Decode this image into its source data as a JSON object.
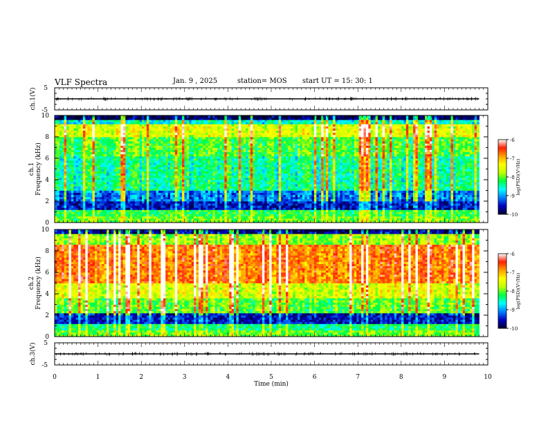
{
  "header": {
    "title": "VLF Spectra",
    "date": "Jan. 9 , 2025",
    "station": "station= MOS",
    "start_ut": "start UT = 15: 30: 1"
  },
  "chart_data": [
    {
      "type": "line",
      "panel": "ch1-waveform",
      "ylabel": "ch.1(V)",
      "ylim": [
        -5,
        5
      ],
      "yticks": [
        "5",
        "-5"
      ],
      "xlim": [
        0,
        10
      ],
      "series": [
        {
          "x": [
            0,
            9.8
          ],
          "y": [
            0,
            0
          ]
        }
      ]
    },
    {
      "type": "heatmap",
      "panel": "ch1-spectrogram",
      "ylabel_line1": "ch.1",
      "ylabel_line2": "Frequency (kHz)",
      "ylim": [
        0,
        10
      ],
      "yticks": [
        "0",
        "2",
        "4",
        "6",
        "8",
        "10"
      ],
      "xlim": [
        0,
        10
      ],
      "data_xmax": 9.8,
      "colorbar": {
        "label": "log(PSD)(V²/Hz)",
        "range": [
          -10,
          -6
        ],
        "ticks": [
          "-6",
          "-7",
          "-8",
          "-9",
          "-10"
        ]
      }
    },
    {
      "type": "heatmap",
      "panel": "ch2-spectrogram",
      "ylabel_line1": "ch.2",
      "ylabel_line2": "Frequency (kHz)",
      "ylim": [
        0,
        10
      ],
      "yticks": [
        "0",
        "2",
        "4",
        "6",
        "8",
        "10"
      ],
      "xlim": [
        0,
        10
      ],
      "data_xmax": 9.8,
      "colorbar": {
        "label": "log(PSD)(V²/Hz)",
        "range": [
          -10,
          -6
        ],
        "ticks": [
          "-6",
          "-7",
          "-8",
          "-9",
          "-10"
        ]
      }
    },
    {
      "type": "line",
      "panel": "ch3-waveform",
      "ylabel": "ch.3(V)",
      "ylim": [
        -5,
        5
      ],
      "yticks": [
        "5",
        "-5"
      ],
      "xlim": [
        0,
        10
      ],
      "series": [
        {
          "x": [
            0,
            9.8
          ],
          "y": [
            0,
            0
          ]
        }
      ]
    }
  ],
  "xaxis": {
    "label": "Time (min)",
    "ticks": [
      "0",
      "1",
      "2",
      "3",
      "4",
      "5",
      "6",
      "7",
      "8",
      "9",
      "10"
    ]
  },
  "colors": {
    "colormap": [
      "#000030",
      "#0000c0",
      "#0080ff",
      "#00ffff",
      "#00ff40",
      "#c0ff00",
      "#ffff00",
      "#ffa000",
      "#ff2000",
      "#ffffff"
    ]
  }
}
